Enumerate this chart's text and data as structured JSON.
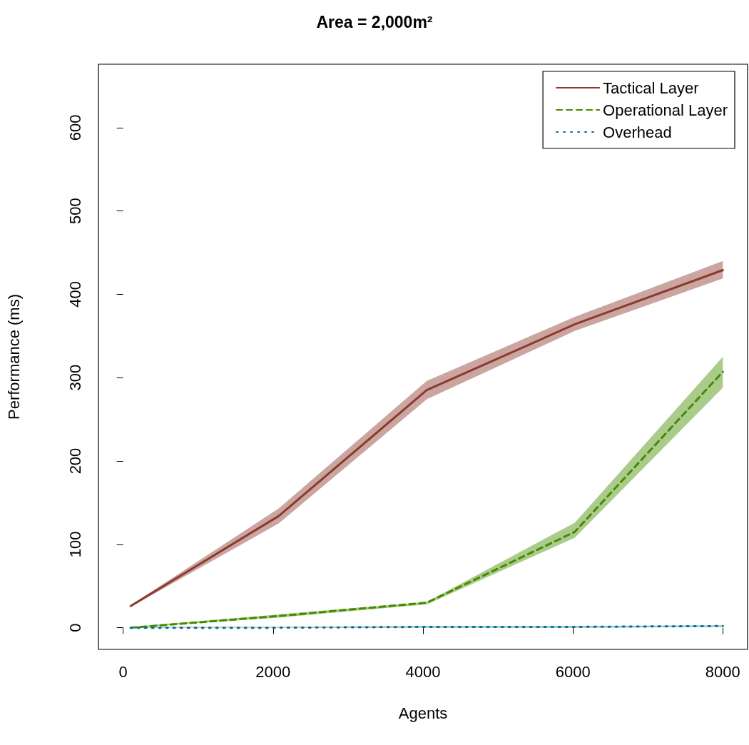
{
  "chart_data": {
    "type": "line",
    "title": "Area = 2,000m²",
    "xlabel": "Agents",
    "ylabel": "Performance (ms)",
    "x": [
      100,
      2075,
      4050,
      6025,
      8000
    ],
    "series": [
      {
        "name": "Tactical Layer",
        "color": "#8b3a2f",
        "line_style": "solid",
        "values": [
          26,
          134,
          285,
          364,
          429
        ],
        "lower": [
          25,
          125,
          274,
          356,
          419
        ],
        "upper": [
          27,
          143,
          296,
          373,
          440
        ]
      },
      {
        "name": "Operational Layer",
        "color": "#458b00",
        "line_style": "dashed",
        "values": [
          0,
          14,
          30,
          115,
          307
        ],
        "lower": [
          0,
          12,
          28,
          108,
          288
        ],
        "upper": [
          1,
          16,
          31,
          126,
          325
        ]
      },
      {
        "name": "Overhead",
        "color": "#0b6e8c",
        "line_style": "dotted",
        "values": [
          0,
          0,
          1,
          1,
          2
        ],
        "lower": [
          0,
          0,
          0,
          0,
          1
        ],
        "upper": [
          1,
          1,
          2,
          2,
          3
        ]
      }
    ],
    "xlim": [
      -330,
      8330
    ],
    "xticks": [
      0,
      2000,
      4000,
      6000,
      8000
    ],
    "ylim": [
      -26,
      676
    ],
    "yticks": [
      0,
      100,
      200,
      300,
      400,
      500,
      600
    ],
    "grid": false,
    "legend": "top right",
    "marker": "none"
  }
}
